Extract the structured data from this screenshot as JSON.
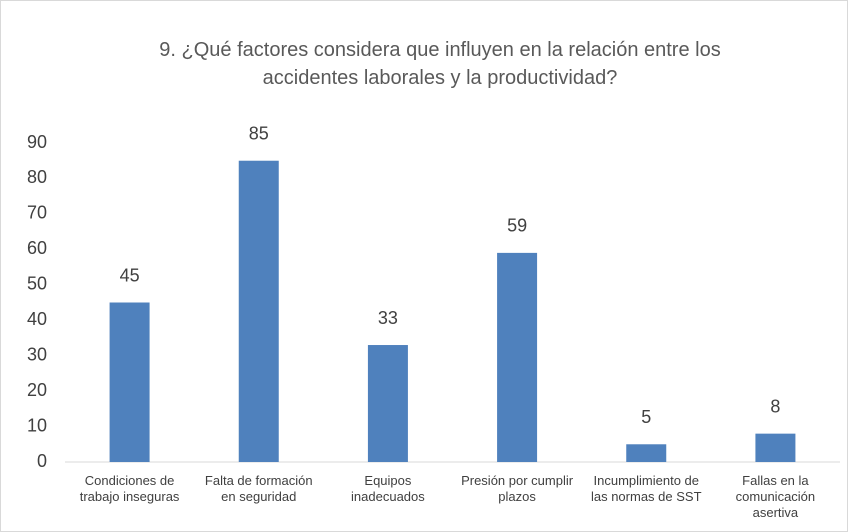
{
  "chart_data": {
    "type": "bar",
    "title": "9. ¿Qué factores considera que influyen en la relación entre los accidentes laborales y la productividad?",
    "categories": [
      "Condiciones de trabajo inseguras",
      "Falta de formación en seguridad",
      "Equipos inadecuados",
      "Presión por cumplir plazos",
      "Incumplimiento de las normas de SST",
      "Fallas en la comunicación asertiva"
    ],
    "values": [
      45,
      85,
      33,
      59,
      5,
      8
    ],
    "color": "#4f81bd",
    "ylim": [
      0,
      90
    ],
    "yticks": [
      0,
      10,
      20,
      30,
      40,
      50,
      60,
      70,
      80,
      90
    ],
    "grid": false
  }
}
